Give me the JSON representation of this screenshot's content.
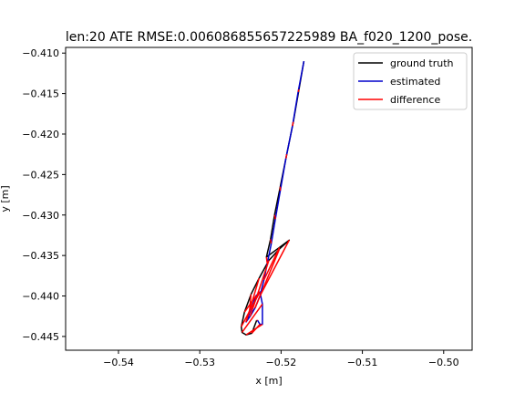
{
  "chart_data": {
    "type": "line",
    "title": "len:20 ATE RMSE:0.006086855657225989 BA_f020_1200_pose.",
    "xlabel": "x [m]",
    "ylabel": "y [m]",
    "xlim": [
      -0.5465,
      -0.4965
    ],
    "ylim": [
      -0.4467,
      -0.4093
    ],
    "xticks": [
      -0.54,
      -0.53,
      -0.52,
      -0.51,
      -0.5
    ],
    "xtick_labels": [
      "−0.54",
      "−0.53",
      "−0.52",
      "−0.51",
      "−0.50"
    ],
    "yticks": [
      -0.41,
      -0.415,
      -0.42,
      -0.425,
      -0.43,
      -0.435,
      -0.44,
      -0.445
    ],
    "ytick_labels": [
      "−0.410",
      "−0.415",
      "−0.420",
      "−0.425",
      "−0.430",
      "−0.435",
      "−0.440",
      "−0.445"
    ],
    "grid": false,
    "legend_position": "top-right",
    "series": [
      {
        "name": "ground truth",
        "color": "#000000",
        "x": [
          -0.5172,
          -0.5178,
          -0.5185,
          -0.5193,
          -0.5201,
          -0.5208,
          -0.5213,
          -0.5218,
          -0.5202,
          -0.519,
          -0.5202,
          -0.5215,
          -0.5227,
          -0.5237,
          -0.5245,
          -0.5249,
          -0.5248,
          -0.5243,
          -0.5236,
          -0.523
        ],
        "y": [
          -0.411,
          -0.4145,
          -0.4185,
          -0.4225,
          -0.4265,
          -0.43,
          -0.433,
          -0.4352,
          -0.434,
          -0.4331,
          -0.4342,
          -0.4356,
          -0.4378,
          -0.4398,
          -0.442,
          -0.4438,
          -0.4445,
          -0.4448,
          -0.4446,
          -0.443
        ]
      },
      {
        "name": "estimated",
        "color": "#0000cc",
        "x": [
          -0.5172,
          -0.5179,
          -0.5186,
          -0.5194,
          -0.5201,
          -0.5207,
          -0.5212,
          -0.5217,
          -0.5221,
          -0.5226,
          -0.5232,
          -0.5238,
          -0.5243,
          -0.5239,
          -0.5231,
          -0.5226,
          -0.5223,
          -0.5223,
          -0.5226,
          -0.5229
        ],
        "y": [
          -0.411,
          -0.4148,
          -0.419,
          -0.423,
          -0.427,
          -0.4305,
          -0.4335,
          -0.436,
          -0.438,
          -0.44,
          -0.4415,
          -0.4425,
          -0.4432,
          -0.4422,
          -0.44,
          -0.4395,
          -0.441,
          -0.4435,
          -0.4435,
          -0.443
        ]
      }
    ],
    "difference": {
      "name": "difference",
      "color": "#ff0000"
    }
  }
}
